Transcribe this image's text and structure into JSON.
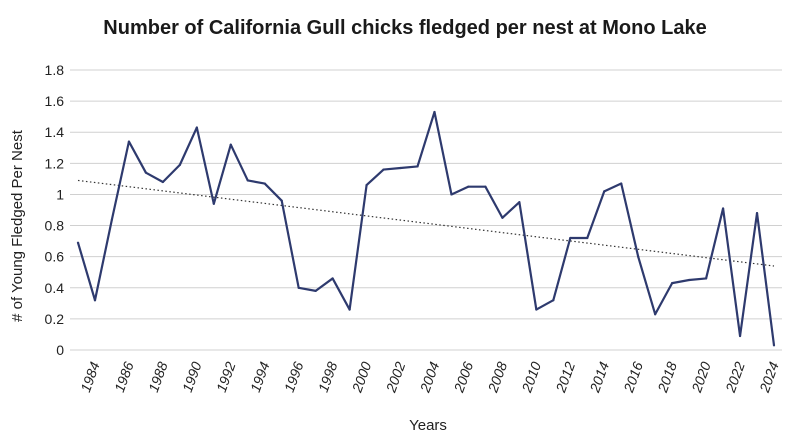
{
  "chart_data": {
    "type": "line",
    "title": "Number of California Gull chicks fledged per nest at Mono Lake",
    "xlabel": "Years",
    "ylabel": "# of Young Fledged Per Nest",
    "ylim": [
      0,
      1.8
    ],
    "yticks": [
      "0",
      "0.2",
      "0.4",
      "0.6",
      "0.8",
      "1",
      "1.2",
      "1.4",
      "1.6",
      "1.8"
    ],
    "xticks": [
      "1984",
      "1986",
      "1988",
      "1990",
      "1992",
      "1994",
      "1996",
      "1998",
      "2000",
      "2002",
      "2004",
      "2006",
      "2008",
      "2010",
      "2012",
      "2014",
      "2016",
      "2018",
      "2020",
      "2022",
      "2024"
    ],
    "x": [
      1983,
      1984,
      1985,
      1986,
      1987,
      1988,
      1989,
      1990,
      1991,
      1992,
      1993,
      1994,
      1995,
      1996,
      1997,
      1998,
      1999,
      2000,
      2001,
      2002,
      2003,
      2004,
      2005,
      2006,
      2007,
      2008,
      2009,
      2010,
      2011,
      2012,
      2013,
      2014,
      2015,
      2016,
      2017,
      2018,
      2019,
      2020,
      2021,
      2022,
      2023,
      2024
    ],
    "series": [
      {
        "values": [
          0.69,
          0.32,
          0.84,
          1.34,
          1.14,
          1.08,
          1.19,
          1.43,
          0.94,
          1.32,
          1.09,
          1.07,
          0.96,
          0.4,
          0.38,
          0.46,
          0.26,
          1.06,
          1.16,
          1.17,
          1.18,
          1.53,
          1.0,
          1.05,
          1.05,
          0.85,
          0.95,
          0.26,
          0.32,
          0.72,
          0.72,
          1.02,
          1.07,
          0.6,
          0.23,
          0.43,
          0.45,
          0.46,
          0.91,
          0.09,
          0.88,
          0.03
        ],
        "color": "#2e3a6e"
      }
    ],
    "trendline": {
      "type": "linear",
      "start": [
        1983,
        1.09
      ],
      "end": [
        2024,
        0.54
      ],
      "color": "#333333"
    },
    "grid": true,
    "legend": "none"
  }
}
